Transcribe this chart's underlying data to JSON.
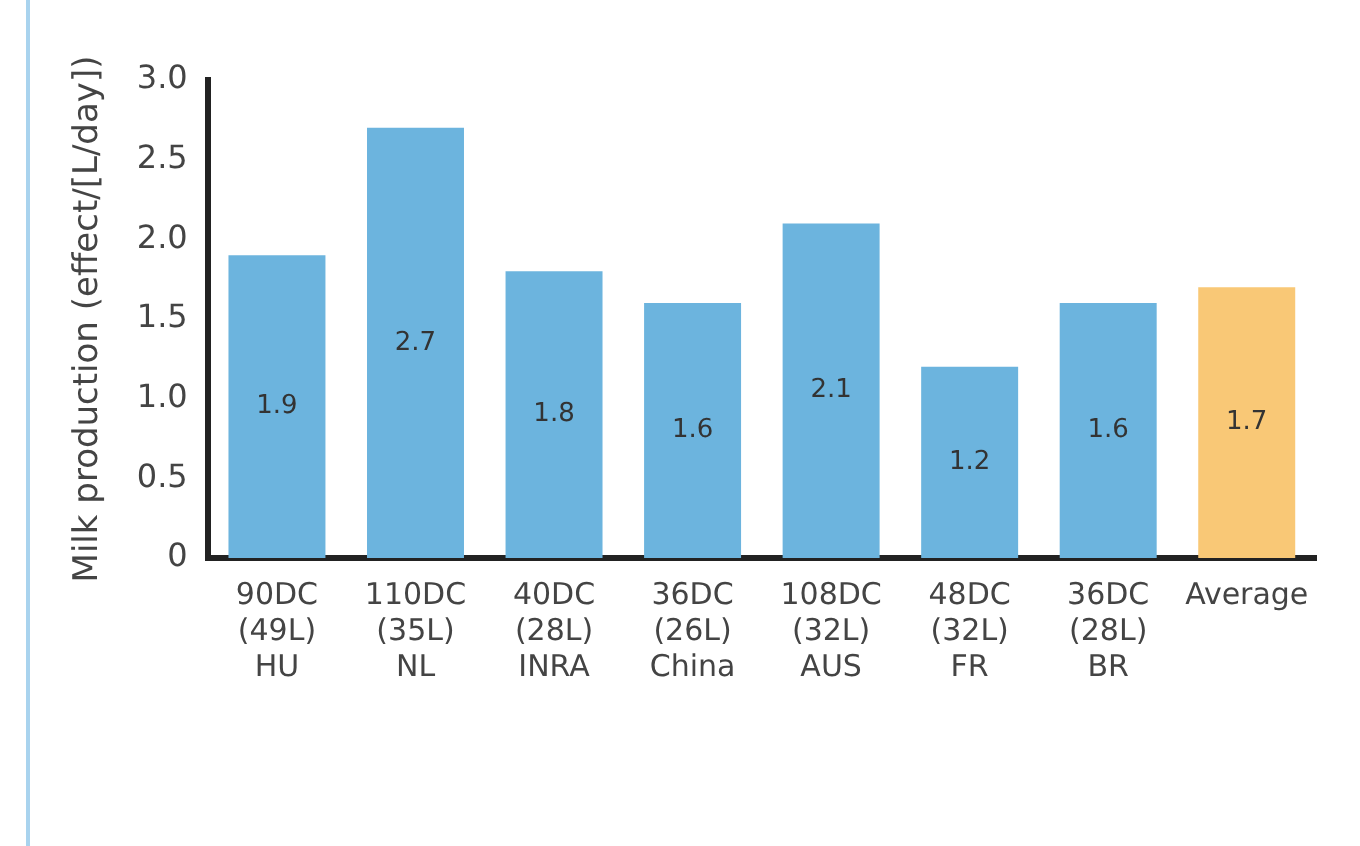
{
  "chart_data": {
    "type": "bar",
    "ylabel": "Milk production (effect/[L/day])",
    "categories": [
      "90DC\n(49L)\nHU",
      "110DC\n(35L)\nNL",
      "40DC\n(28L)\nINRA",
      "36DC\n(26L)\nChina",
      "108DC\n(32L)\nAUS",
      "48DC\n(32L)\nFR",
      "36DC\n(28L)\nBR",
      "Average"
    ],
    "values": [
      1.9,
      2.7,
      1.8,
      1.6,
      2.1,
      1.2,
      1.6,
      1.7
    ],
    "colors": [
      "#6cb4de",
      "#6cb4de",
      "#6cb4de",
      "#6cb4de",
      "#6cb4de",
      "#6cb4de",
      "#6cb4de",
      "#f9c876"
    ],
    "ylim": [
      0,
      3
    ],
    "yticks": [
      {
        "value": 0,
        "label": "0"
      },
      {
        "value": 0.5,
        "label": "0.5"
      },
      {
        "value": 1,
        "label": "1.0"
      },
      {
        "value": 1.5,
        "label": "1.5"
      },
      {
        "value": 2,
        "label": "2.0"
      },
      {
        "value": 2.5,
        "label": "2.5"
      },
      {
        "value": 3,
        "label": "3.0"
      }
    ],
    "data_labels": true,
    "grid": false,
    "legend": false
  }
}
